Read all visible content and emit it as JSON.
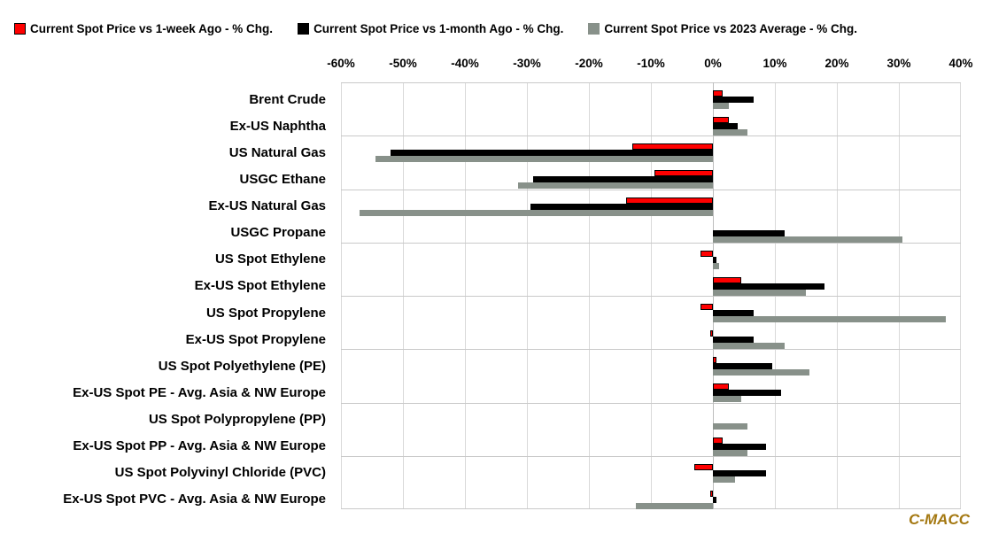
{
  "watermark": "C-MACC",
  "colors": {
    "bar_red": "#FF0000",
    "bar_black": "#000000",
    "bar_gray": "#88918A",
    "gridline": "#D9D9D9",
    "separator": "#C9C9C9",
    "zero_line": "#BDBDBD",
    "watermark": "#A47811"
  },
  "chart_data": {
    "type": "bar",
    "orientation": "horizontal",
    "xlim": [
      -60,
      40
    ],
    "x_ticks": [
      "-60%",
      "-50%",
      "-40%",
      "-30%",
      "-20%",
      "-10%",
      "0%",
      "10%",
      "20%",
      "30%",
      "40%"
    ],
    "grid": "on",
    "legend_position": "top",
    "categories": [
      "Brent Crude",
      "Ex-US Naphtha",
      "US Natural Gas",
      "USGC Ethane",
      "Ex-US Natural Gas",
      "USGC Propane",
      "US Spot Ethylene",
      "Ex-US Spot Ethylene",
      "US Spot Propylene",
      "Ex-US Spot Propylene",
      "US Spot Polyethylene (PE)",
      "Ex-US Spot PE - Avg. Asia & NW Europe",
      "US Spot Polypropylene (PP)",
      "Ex-US Spot PP - Avg. Asia & NW Europe",
      "US Spot Polyvinyl Chloride (PVC)",
      "Ex-US Spot PVC - Avg. Asia & NW Europe"
    ],
    "series": [
      {
        "name": "Current Spot Price vs 1-week Ago - % Chg.",
        "color": "#FF0000",
        "values": [
          1.5,
          2.5,
          -13,
          -9.5,
          -14,
          0,
          -2,
          4.5,
          -2,
          -0.5,
          0.5,
          2.5,
          0,
          1.5,
          -3,
          -0.5
        ]
      },
      {
        "name": "Current Spot Price vs 1-month Ago - % Chg.",
        "color": "#000000",
        "values": [
          6.5,
          4,
          -52,
          -29,
          -29.5,
          11.5,
          0.5,
          18,
          6.5,
          6.5,
          9.5,
          11,
          0,
          8.5,
          8.5,
          0.5
        ]
      },
      {
        "name": "Current Spot Price vs 2023 Average - % Chg.",
        "color": "#88918A",
        "values": [
          2.5,
          5.5,
          -54.5,
          -31.5,
          -57,
          30.5,
          1,
          15,
          37.5,
          11.5,
          15.5,
          4.5,
          5.5,
          5.5,
          3.5,
          -12.5
        ]
      }
    ]
  }
}
